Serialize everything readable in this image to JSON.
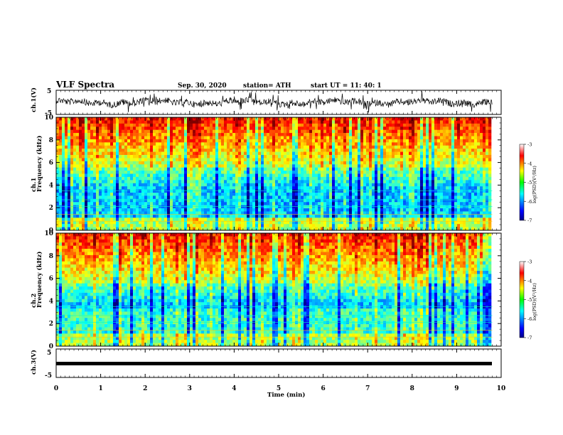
{
  "header": {
    "title": "VLF Spectra",
    "date": "Sep. 30, 2020",
    "station": "station= ATH",
    "start": "start  UT =   11: 40: 1"
  },
  "chart_data": [
    {
      "type": "line",
      "name": "ch1-waveform",
      "ylabel": "ch.1(V)",
      "ylim": [
        -5,
        5
      ],
      "yticks": [
        "5",
        "-5"
      ],
      "xlim": [
        0,
        10
      ],
      "data_extent_min": 9.8
    },
    {
      "type": "heatmap",
      "name": "ch1-spectrogram",
      "ylabel": "ch.1\nFrequency (kHz)",
      "ylim": [
        0,
        10
      ],
      "yticks": [
        "0",
        "2",
        "4",
        "6",
        "8",
        "10"
      ],
      "xlim": [
        0,
        10
      ],
      "colorbar": {
        "label": "log(PSD)(V²/Hz)",
        "range": [
          -7,
          -3
        ],
        "ticks": [
          "-3",
          "-4",
          "-5",
          "-6",
          "-7"
        ]
      }
    },
    {
      "type": "heatmap",
      "name": "ch2-spectrogram",
      "ylabel": "ch.2\nFrequency (kHz)",
      "ylim": [
        0,
        10
      ],
      "yticks": [
        "0",
        "2",
        "4",
        "6",
        "8",
        "10"
      ],
      "xlim": [
        0,
        10
      ],
      "colorbar": {
        "label": "log(PSD)(V²/Hz)",
        "range": [
          -7,
          -3
        ],
        "ticks": [
          "-3",
          "-4",
          "-5",
          "-6",
          "-7"
        ]
      }
    },
    {
      "type": "line",
      "name": "ch3-waveform",
      "ylabel": "ch.3(V)",
      "ylim": [
        -5,
        5
      ],
      "yticks": [
        "5",
        "-5"
      ],
      "xlim": [
        0,
        10
      ],
      "xlabel": "Time (min)",
      "xticks": [
        "0",
        "1",
        "2",
        "3",
        "4",
        "5",
        "6",
        "7",
        "8",
        "9",
        "10"
      ],
      "data_extent_min": 9.8
    }
  ],
  "colorbar_labels": {
    "ticks": [
      "-3",
      "-4",
      "-5",
      "-6",
      "-7"
    ],
    "label": "log(PSD)(V²/Hz)"
  }
}
